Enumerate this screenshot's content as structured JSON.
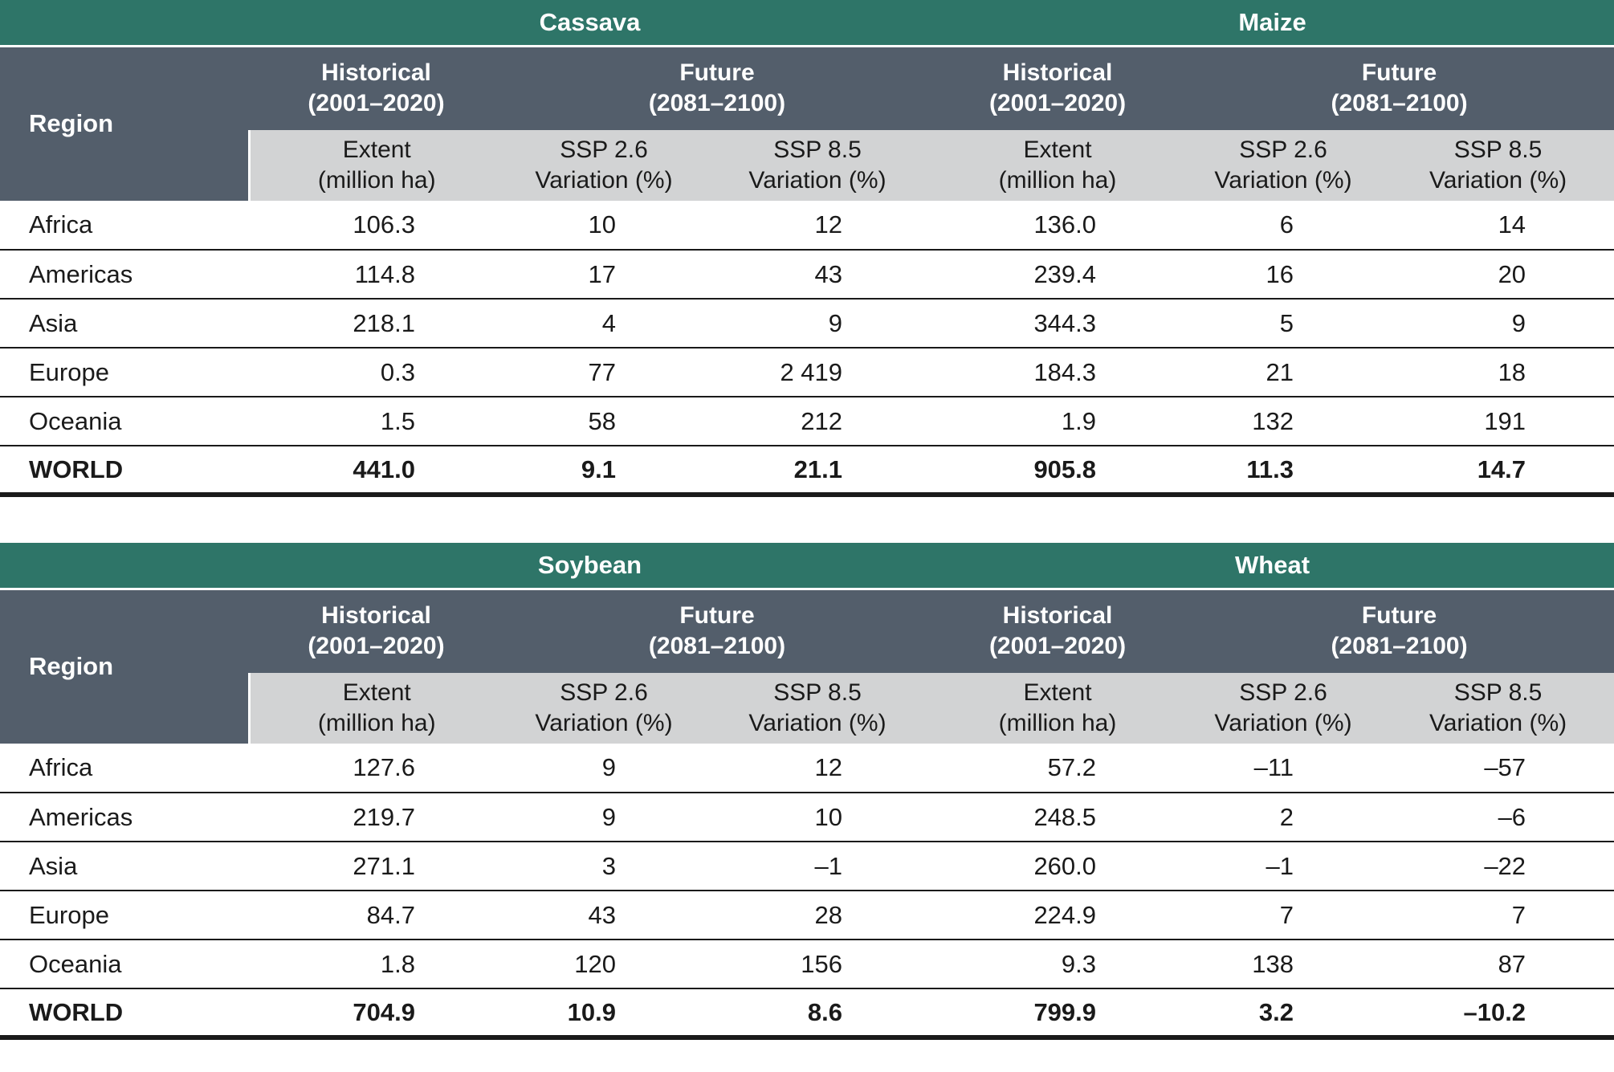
{
  "colors": {
    "teal_header": "#2e7568",
    "slate_header": "#535e6b",
    "gray_subheader": "#d2d3d4",
    "row_line": "#1a1a1a",
    "text": "#1a1a1a",
    "header_text": "#ffffff"
  },
  "headers": {
    "region": "Region",
    "historical": {
      "l1": "Historical",
      "l2": "(2001–2020)"
    },
    "future": {
      "l1": "Future",
      "l2": "(2081–2100)"
    },
    "extent": {
      "l1": "Extent",
      "l2": "(million ha)"
    },
    "ssp26": {
      "l1": "SSP 2.6",
      "l2": "Variation (%)"
    },
    "ssp85": {
      "l1": "SSP 8.5",
      "l2": "Variation (%)"
    }
  },
  "tables": [
    {
      "crop_headers": [
        "Cassava",
        "Maize"
      ],
      "rows": [
        {
          "region": "Africa",
          "values": [
            "106.3",
            "10",
            "12",
            "136.0",
            "6",
            "14"
          ]
        },
        {
          "region": "Americas",
          "values": [
            "114.8",
            "17",
            "43",
            "239.4",
            "16",
            "20"
          ]
        },
        {
          "region": "Asia",
          "values": [
            "218.1",
            "4",
            "9",
            "344.3",
            "5",
            "9"
          ]
        },
        {
          "region": "Europe",
          "values": [
            "0.3",
            "77",
            "2 419",
            "184.3",
            "21",
            "18"
          ]
        },
        {
          "region": "Oceania",
          "values": [
            "1.5",
            "58",
            "212",
            "1.9",
            "132",
            "191"
          ]
        },
        {
          "region": "WORLD",
          "values": [
            "441.0",
            "9.1",
            "21.1",
            "905.8",
            "11.3",
            "14.7"
          ]
        }
      ]
    },
    {
      "crop_headers": [
        "Soybean",
        "Wheat"
      ],
      "rows": [
        {
          "region": "Africa",
          "values": [
            "127.6",
            "9",
            "12",
            "57.2",
            "–11",
            "–57"
          ]
        },
        {
          "region": "Americas",
          "values": [
            "219.7",
            "9",
            "10",
            "248.5",
            "2",
            "–6"
          ]
        },
        {
          "region": "Asia",
          "values": [
            "271.1",
            "3",
            "–1",
            "260.0",
            "–1",
            "–22"
          ]
        },
        {
          "region": "Europe",
          "values": [
            "84.7",
            "43",
            "28",
            "224.9",
            "7",
            "7"
          ]
        },
        {
          "region": "Oceania",
          "values": [
            "1.8",
            "120",
            "156",
            "9.3",
            "138",
            "87"
          ]
        },
        {
          "region": "WORLD",
          "values": [
            "704.9",
            "10.9",
            "8.6",
            "799.9",
            "3.2",
            "–10.2"
          ]
        }
      ]
    }
  ]
}
